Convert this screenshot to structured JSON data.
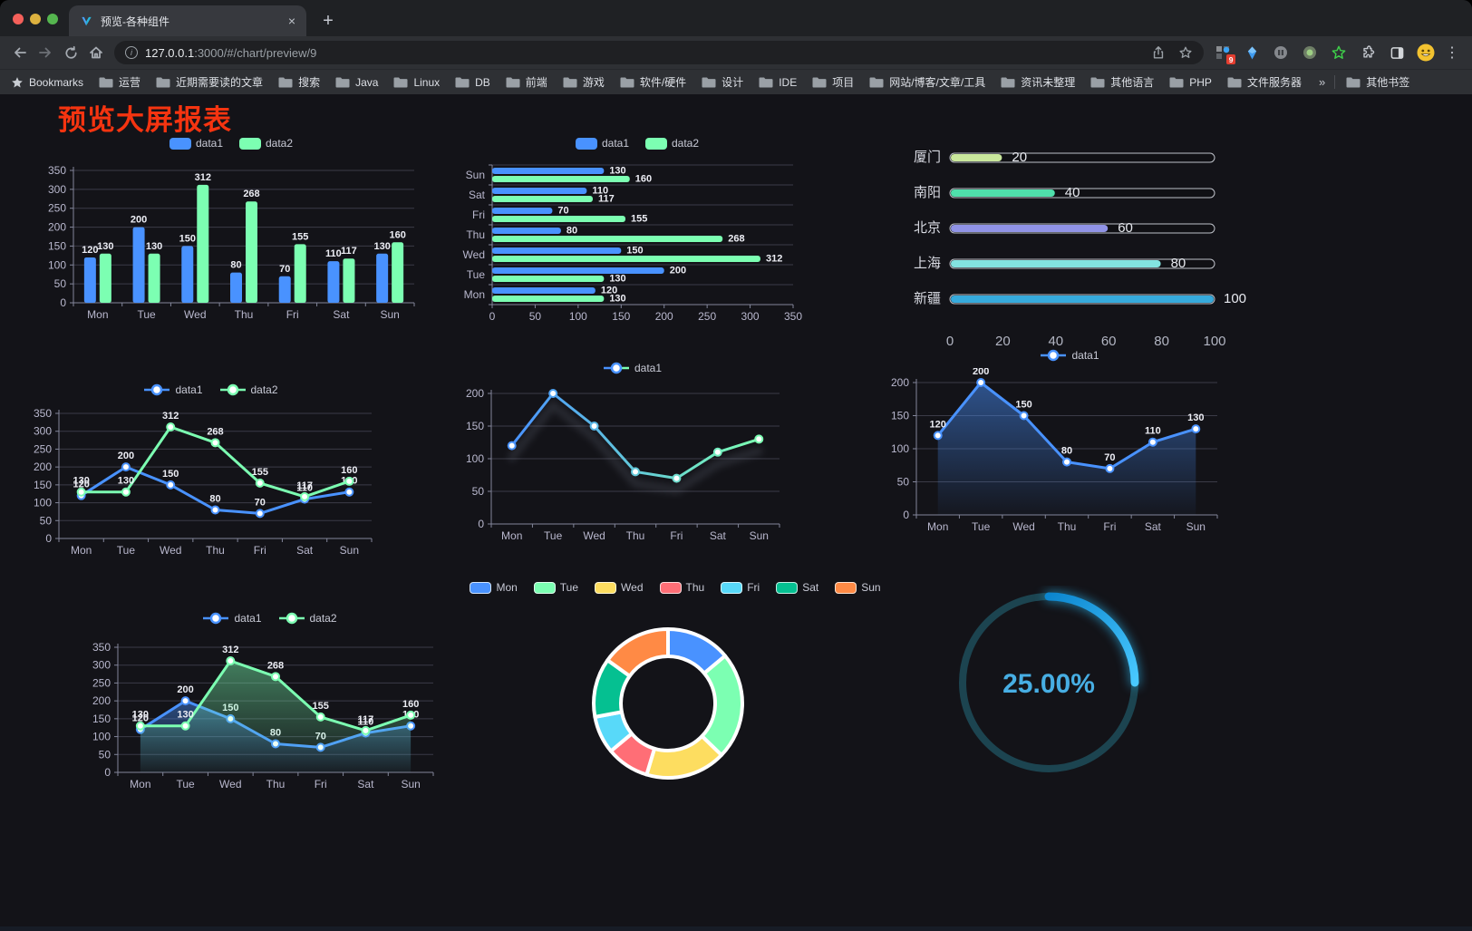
{
  "browser": {
    "tab": {
      "title": "预览-各种组件",
      "close": "×"
    },
    "new_tab": "+",
    "url": {
      "host": "127.0.0.1",
      "rest": ":3000/#/chart/preview/9"
    },
    "extensions_badge": "9",
    "bookmarks_bar": {
      "star_label": "Bookmarks",
      "folders": [
        "运营",
        "近期需要读的文章",
        "搜索",
        "Java",
        "Linux",
        "DB",
        "前端",
        "游戏",
        "软件/硬件",
        "设计",
        "IDE",
        "项目",
        "网站/博客/文章/工具",
        "资讯未整理",
        "其他语言",
        "PHP",
        "文件服务器"
      ],
      "overflow": "»",
      "other": "其他书签"
    }
  },
  "page": {
    "title": "预览大屏报表",
    "title_color": "#f53410",
    "background": "#131318"
  },
  "chart_data": [
    {
      "id": "bar-vertical",
      "type": "bar",
      "legend_position": "top",
      "categories": [
        "Mon",
        "Tue",
        "Wed",
        "Thu",
        "Fri",
        "Sat",
        "Sun"
      ],
      "series": [
        {
          "name": "data1",
          "color": "#4992ff",
          "values": [
            120,
            200,
            150,
            80,
            70,
            110,
            130
          ]
        },
        {
          "name": "data2",
          "color": "#7cffb2",
          "values": [
            130,
            130,
            312,
            268,
            155,
            117,
            160
          ]
        }
      ],
      "ylim": [
        0,
        350
      ],
      "ystep": 50,
      "grid": true,
      "data_labels": true
    },
    {
      "id": "bar-horizontal",
      "type": "bar",
      "orientation": "horizontal",
      "legend_position": "top",
      "categories": [
        "Mon",
        "Tue",
        "Wed",
        "Thu",
        "Fri",
        "Sat",
        "Sun"
      ],
      "series": [
        {
          "name": "data1",
          "color": "#4992ff",
          "values": [
            120,
            200,
            150,
            80,
            70,
            110,
            130
          ]
        },
        {
          "name": "data2",
          "color": "#7cffb2",
          "values": [
            130,
            130,
            312,
            268,
            155,
            117,
            160
          ]
        }
      ],
      "xlim": [
        0,
        350
      ],
      "xstep": 50,
      "grid": true,
      "data_labels": true
    },
    {
      "id": "progress-bars",
      "type": "bar",
      "orientation": "horizontal",
      "categories": [
        "厦门",
        "南阳",
        "北京",
        "上海",
        "新疆"
      ],
      "values": [
        20,
        40,
        60,
        80,
        100
      ],
      "colors": [
        "#c9e79c",
        "#4fdfab",
        "#9093e6",
        "#83e3e0",
        "#36aadc"
      ],
      "xlim": [
        0,
        100
      ],
      "xticks": [
        0,
        20,
        40,
        60,
        80,
        100
      ],
      "data_labels": true
    },
    {
      "id": "line-two-series",
      "type": "line",
      "legend_position": "top",
      "categories": [
        "Mon",
        "Tue",
        "Wed",
        "Thu",
        "Fri",
        "Sat",
        "Sun"
      ],
      "series": [
        {
          "name": "data1",
          "color": "#4992ff",
          "values": [
            120,
            200,
            150,
            80,
            70,
            110,
            130
          ]
        },
        {
          "name": "data2",
          "color": "#7cffb2",
          "values": [
            130,
            130,
            312,
            268,
            155,
            117,
            160
          ]
        }
      ],
      "ylim": [
        0,
        350
      ],
      "ystep": 50,
      "grid": true,
      "data_labels": true,
      "markers": true
    },
    {
      "id": "line-gradient",
      "type": "line",
      "legend_position": "top",
      "categories": [
        "Mon",
        "Tue",
        "Wed",
        "Thu",
        "Fri",
        "Sat",
        "Sun"
      ],
      "series": [
        {
          "name": "data1",
          "gradient": [
            "#4992ff",
            "#7cffb2"
          ],
          "values": [
            120,
            200,
            150,
            80,
            70,
            110,
            130
          ]
        }
      ],
      "ylim": [
        0,
        200
      ],
      "ystep": 50,
      "grid": true,
      "data_labels": false,
      "markers": true,
      "shadow": true
    },
    {
      "id": "area-one-series",
      "type": "area",
      "legend_position": "top",
      "categories": [
        "Mon",
        "Tue",
        "Wed",
        "Thu",
        "Fri",
        "Sat",
        "Sun"
      ],
      "series": [
        {
          "name": "data1",
          "color": "#4992ff",
          "values": [
            120,
            200,
            150,
            80,
            70,
            110,
            130
          ]
        }
      ],
      "ylim": [
        0,
        200
      ],
      "ystep": 50,
      "grid": true,
      "data_labels": true,
      "markers": true
    },
    {
      "id": "area-two-series",
      "type": "area",
      "legend_position": "top",
      "categories": [
        "Mon",
        "Tue",
        "Wed",
        "Thu",
        "Fri",
        "Sat",
        "Sun"
      ],
      "series": [
        {
          "name": "data1",
          "color": "#4992ff",
          "values": [
            120,
            200,
            150,
            80,
            70,
            110,
            130
          ]
        },
        {
          "name": "data2",
          "color": "#7cffb2",
          "values": [
            130,
            130,
            312,
            268,
            155,
            117,
            160
          ]
        }
      ],
      "ylim": [
        0,
        350
      ],
      "ystep": 50,
      "grid": true,
      "data_labels": true,
      "markers": true
    },
    {
      "id": "donut",
      "type": "pie",
      "legend_position": "top",
      "categories": [
        "Mon",
        "Tue",
        "Wed",
        "Thu",
        "Fri",
        "Sat",
        "Sun"
      ],
      "values": [
        120,
        200,
        150,
        80,
        70,
        110,
        130
      ],
      "colors": [
        "#4992ff",
        "#7cffb2",
        "#fddd60",
        "#ff6e76",
        "#58d9f9",
        "#05c091",
        "#ff8a45"
      ],
      "border_color": "#ffffff"
    },
    {
      "id": "gauge",
      "type": "gauge",
      "value": 25,
      "label": "25.00%",
      "arc_colors": [
        "#0c86cf",
        "#49c9ff"
      ],
      "track_color": "#1c4450",
      "text_color": "#47aee3"
    }
  ]
}
